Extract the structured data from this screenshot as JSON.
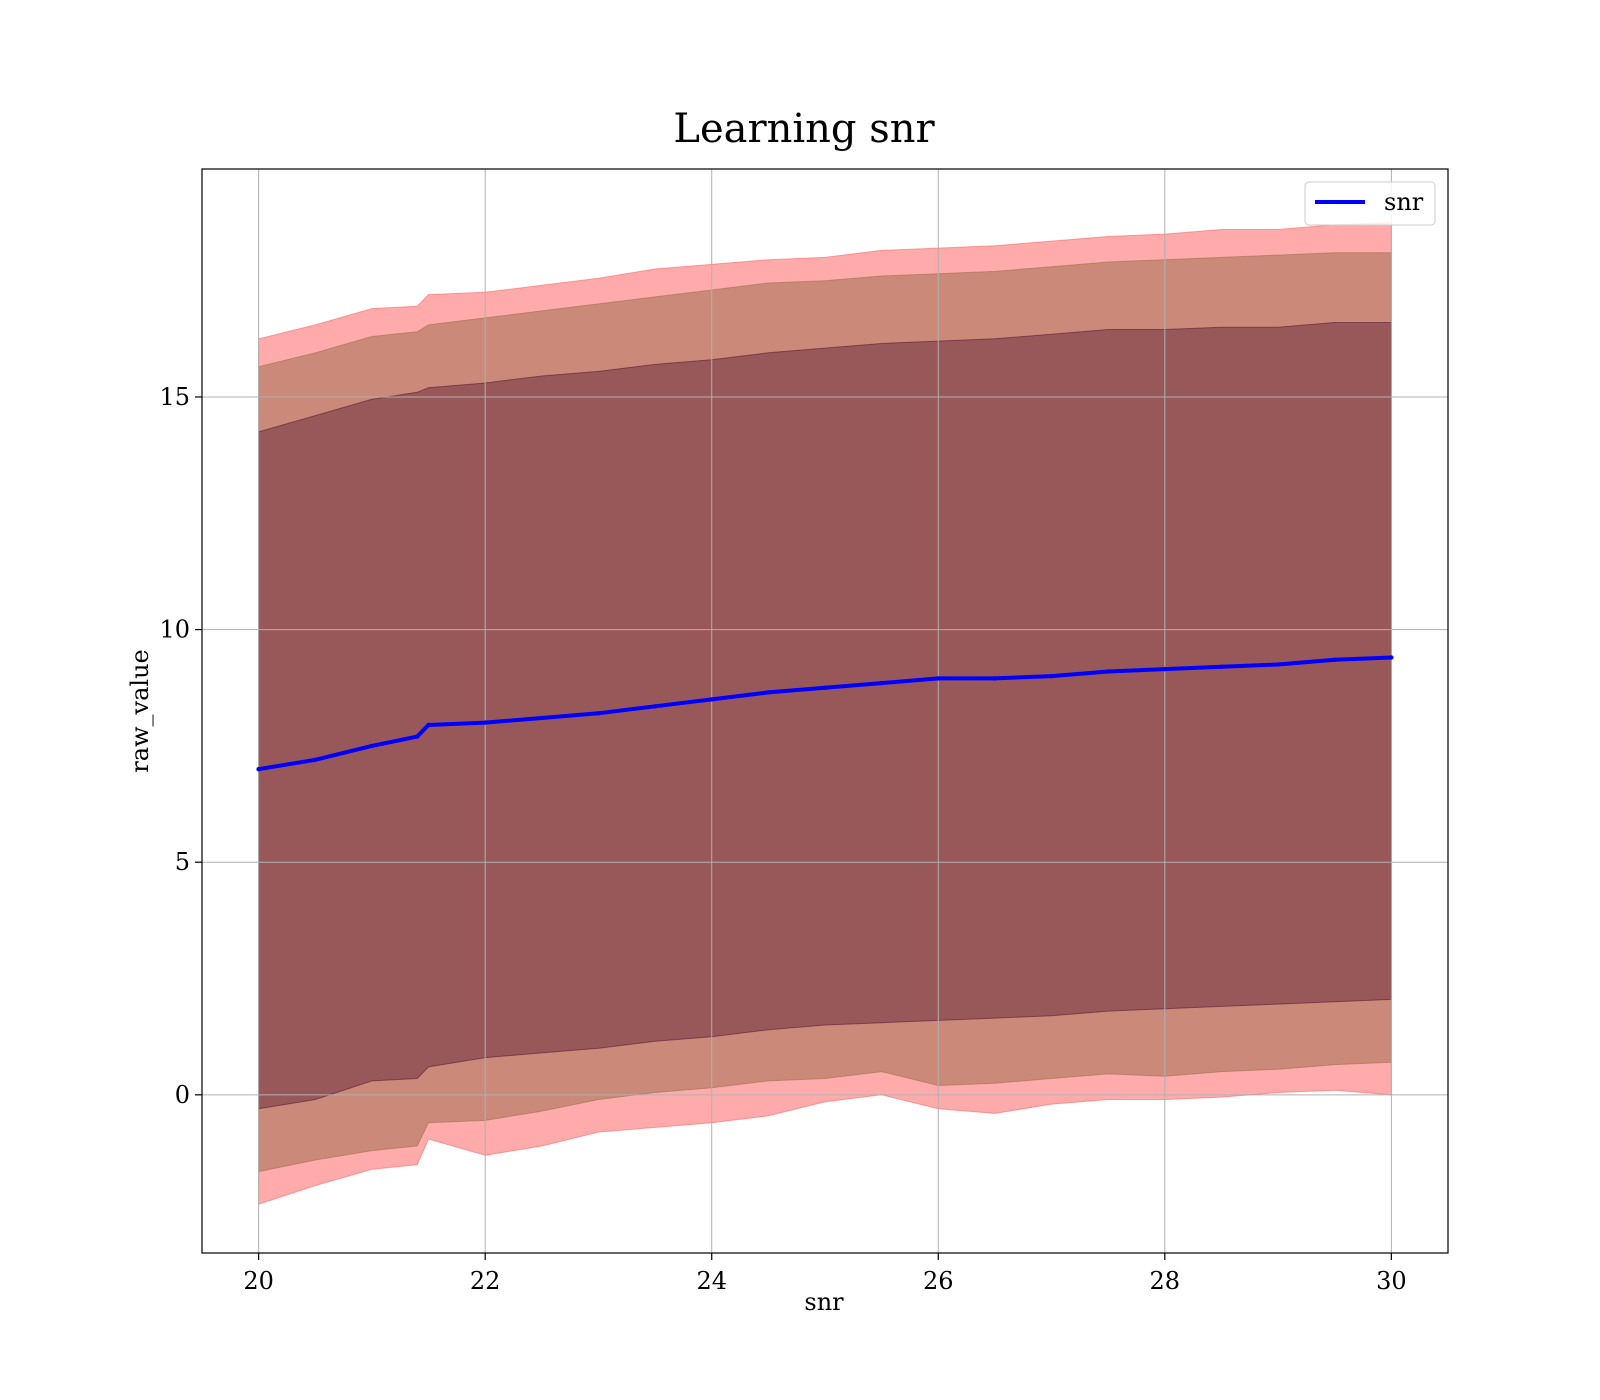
{
  "chart_data": {
    "type": "line",
    "title": "Learning snr",
    "xlabel": "snr",
    "ylabel": "raw_value",
    "xlim": [
      19.5,
      30.5
    ],
    "ylim": [
      -3.4,
      19.9
    ],
    "grid": true,
    "legend_position": "top-right",
    "x_ticks": [
      20,
      22,
      24,
      26,
      28,
      30
    ],
    "y_ticks": [
      0,
      5,
      10,
      15
    ],
    "x": [
      20,
      20.5,
      21,
      21.4,
      21.5,
      22,
      22.5,
      23,
      23.5,
      24,
      24.5,
      25,
      25.5,
      26,
      26.5,
      27,
      27.5,
      28,
      28.5,
      29,
      29.5,
      30
    ],
    "series": [
      {
        "name": "snr",
        "color": "#0000ff",
        "values": [
          7.0,
          7.2,
          7.5,
          7.7,
          7.95,
          8.0,
          8.1,
          8.2,
          8.35,
          8.5,
          8.65,
          8.75,
          8.85,
          8.95,
          8.95,
          9.0,
          9.1,
          9.15,
          9.2,
          9.25,
          9.35,
          9.4
        ]
      }
    ],
    "bands": [
      {
        "color": "#ff6666",
        "opacity": 0.55,
        "lower": [
          -2.35,
          -1.95,
          -1.6,
          -1.5,
          -0.95,
          -1.3,
          -1.1,
          -0.8,
          -0.7,
          -0.6,
          -0.45,
          -0.15,
          0.0,
          -0.3,
          -0.4,
          -0.2,
          -0.1,
          -0.1,
          -0.05,
          0.05,
          0.1,
          0.0
        ],
        "upper": [
          16.25,
          16.55,
          16.9,
          16.95,
          17.2,
          17.25,
          17.4,
          17.55,
          17.75,
          17.85,
          17.95,
          18.0,
          18.15,
          18.2,
          18.25,
          18.35,
          18.45,
          18.5,
          18.6,
          18.6,
          18.7,
          18.75
        ]
      },
      {
        "color": "#a07050",
        "opacity": 0.55,
        "lower": [
          -1.65,
          -1.4,
          -1.2,
          -1.1,
          -0.6,
          -0.55,
          -0.35,
          -0.1,
          0.05,
          0.15,
          0.3,
          0.35,
          0.5,
          0.2,
          0.25,
          0.35,
          0.45,
          0.4,
          0.5,
          0.55,
          0.65,
          0.7
        ],
        "upper": [
          15.65,
          15.95,
          16.3,
          16.4,
          16.55,
          16.7,
          16.85,
          17.0,
          17.15,
          17.3,
          17.45,
          17.5,
          17.6,
          17.65,
          17.7,
          17.8,
          17.9,
          17.95,
          18.0,
          18.05,
          18.1,
          18.1
        ]
      },
      {
        "color": "#5a1a35",
        "opacity": 0.45,
        "lower": [
          -0.3,
          -0.1,
          0.3,
          0.35,
          0.6,
          0.8,
          0.9,
          1.0,
          1.15,
          1.25,
          1.4,
          1.5,
          1.55,
          1.6,
          1.65,
          1.7,
          1.8,
          1.85,
          1.9,
          1.95,
          2.0,
          2.05
        ],
        "upper": [
          14.25,
          14.6,
          14.95,
          15.1,
          15.2,
          15.3,
          15.45,
          15.55,
          15.7,
          15.8,
          15.95,
          16.05,
          16.15,
          16.2,
          16.25,
          16.35,
          16.45,
          16.45,
          16.5,
          16.5,
          16.6,
          16.6
        ]
      }
    ]
  }
}
